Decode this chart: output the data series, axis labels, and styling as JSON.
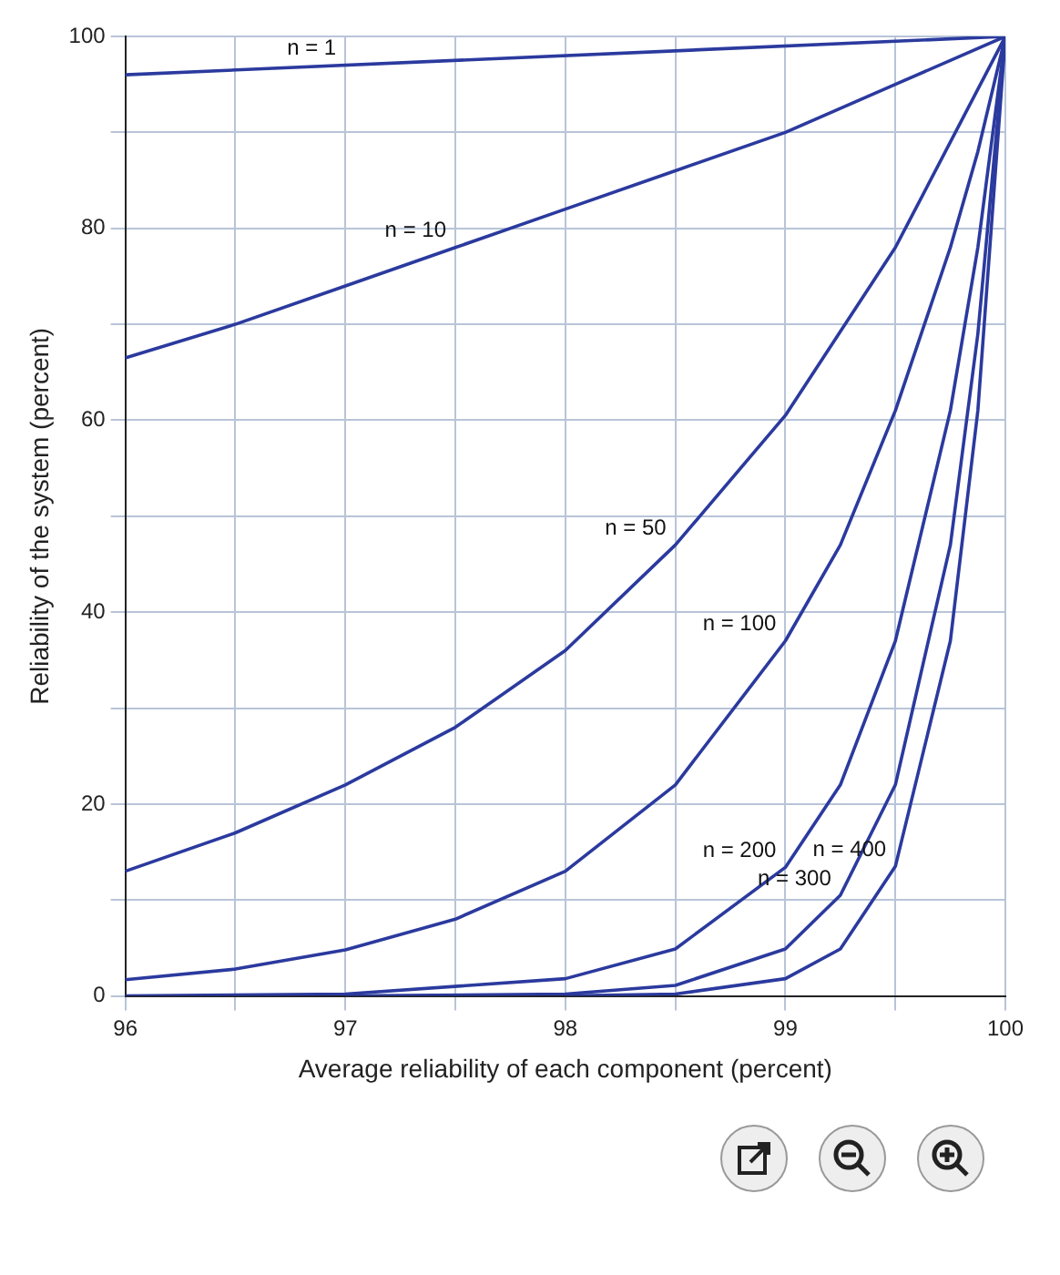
{
  "chart_data": {
    "type": "line",
    "ylabel": "Reliability of the system (percent)",
    "xlabel": "Average reliability of each component (percent)",
    "xlim": [
      96,
      100
    ],
    "xticks": [
      96,
      {
        "value": 96.5,
        "label": null
      },
      97,
      {
        "value": 97.5,
        "label": null
      },
      98,
      {
        "value": 98.5,
        "label": null
      },
      99,
      {
        "value": 99.5,
        "label": null
      },
      100
    ],
    "ylim": [
      0,
      100
    ],
    "yticks": [
      0,
      {
        "value": 10,
        "label": null
      },
      20,
      {
        "value": 30,
        "label": null
      },
      40,
      {
        "value": 50,
        "label": null
      },
      60,
      {
        "value": 70,
        "label": null
      },
      80,
      {
        "value": 90,
        "label": null
      },
      100
    ],
    "grid": true,
    "legend": false,
    "marker": "none",
    "line_style": "solid",
    "series": [
      {
        "color": "#2b3a9e",
        "x": [
          96,
          100
        ],
        "values": [
          96,
          100
        ]
      },
      {
        "color": "#2b3a9e",
        "x": [
          96,
          96.5,
          97,
          97.5,
          98,
          98.5,
          99,
          99.5,
          100
        ],
        "values": [
          66.5,
          70,
          74,
          78,
          82,
          86,
          90,
          95,
          100
        ]
      },
      {
        "color": "#2b3a9e",
        "x": [
          96,
          96.5,
          97,
          97.5,
          98,
          98.5,
          99,
          99.5,
          100
        ],
        "values": [
          13,
          17,
          22,
          28,
          36,
          47,
          60.5,
          78,
          100
        ]
      },
      {
        "color": "#2b3a9e",
        "x": [
          96,
          96.5,
          97,
          97.5,
          98,
          98.5,
          99,
          99.25,
          99.5,
          99.75,
          99.875,
          100
        ],
        "values": [
          1.7,
          2.8,
          4.8,
          8,
          13,
          22,
          37,
          47,
          61,
          78,
          88,
          100
        ]
      },
      {
        "color": "#2b3a9e",
        "x": [
          96,
          97,
          98,
          98.5,
          99,
          99.25,
          99.5,
          99.75,
          99.875,
          100
        ],
        "values": [
          0,
          0.2,
          1.8,
          4.9,
          13.4,
          22,
          37,
          61,
          78,
          100
        ]
      },
      {
        "color": "#2b3a9e",
        "x": [
          97,
          98,
          98.5,
          99,
          99.25,
          99.5,
          99.75,
          99.875,
          100
        ],
        "values": [
          0,
          0.2,
          1.1,
          4.9,
          10.5,
          22,
          47,
          69,
          100
        ]
      },
      {
        "color": "#2b3a9e",
        "x": [
          98,
          98.5,
          99,
          99.25,
          99.5,
          99.75,
          99.875,
          100
        ],
        "values": [
          0,
          0.2,
          1.8,
          4.9,
          13.5,
          37,
          61,
          100
        ]
      }
    ],
    "annotations": [
      {
        "text": "n = 1",
        "x": 97,
        "y": 97
      },
      {
        "text": "n = 10",
        "x": 97.5,
        "y": 78
      },
      {
        "text": "n = 50",
        "x": 98.5,
        "y": 47
      },
      {
        "text": "n = 100",
        "x": 99,
        "y": 37
      },
      {
        "text": "n = 200",
        "x": 99,
        "y": 13.4
      },
      {
        "text": "n = 300",
        "x": 99.25,
        "y": 10.5
      },
      {
        "text": "n = 400",
        "x": 99.5,
        "y": 13.5
      }
    ]
  }
}
